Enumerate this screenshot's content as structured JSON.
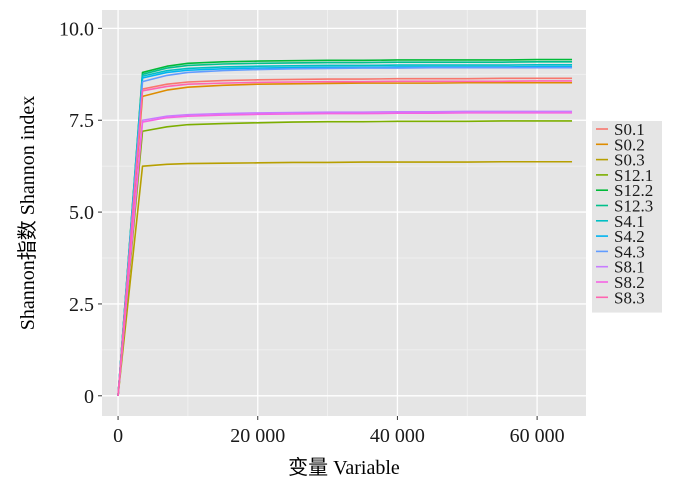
{
  "chart_data": {
    "type": "line",
    "xlabel": "变量 Variable",
    "ylabel": "Shannon指数 Shannon index",
    "xlim": [
      -2300,
      67000
    ],
    "ylim": [
      -0.55,
      10.5
    ],
    "x_ticks": [
      0,
      20000,
      40000,
      60000
    ],
    "x_tick_labels": [
      "0",
      "20 000",
      "40 000",
      "60 000"
    ],
    "y_ticks": [
      0,
      2.5,
      5.0,
      7.5,
      10.0
    ],
    "y_tick_labels": [
      "0",
      "2.5",
      "5.0",
      "7.5",
      "10.0"
    ],
    "grid": true,
    "panel_background": "#e5e5e5",
    "legend_position": "right",
    "x": [
      0,
      3500,
      7000,
      10000,
      15000,
      20000,
      25000,
      30000,
      35000,
      40000,
      45000,
      50000,
      55000,
      60000,
      65000
    ],
    "series": [
      {
        "name": "S0.1",
        "color": "#F8766D",
        "values": [
          0,
          8.35,
          8.48,
          8.54,
          8.58,
          8.6,
          8.61,
          8.62,
          8.62,
          8.63,
          8.63,
          8.63,
          8.64,
          8.64,
          8.64
        ]
      },
      {
        "name": "S0.2",
        "color": "#DE8C00",
        "values": [
          0,
          8.15,
          8.32,
          8.4,
          8.45,
          8.48,
          8.49,
          8.5,
          8.51,
          8.51,
          8.51,
          8.52,
          8.52,
          8.52,
          8.52
        ]
      },
      {
        "name": "S0.3",
        "color": "#B79F00",
        "values": [
          0,
          6.25,
          6.3,
          6.32,
          6.33,
          6.34,
          6.35,
          6.35,
          6.36,
          6.36,
          6.36,
          6.36,
          6.37,
          6.37,
          6.37
        ]
      },
      {
        "name": "S12.1",
        "color": "#7CAE00",
        "values": [
          0,
          7.2,
          7.32,
          7.38,
          7.41,
          7.43,
          7.45,
          7.46,
          7.46,
          7.47,
          7.47,
          7.47,
          7.48,
          7.48,
          7.48
        ]
      },
      {
        "name": "S12.2",
        "color": "#00BA38",
        "values": [
          0,
          8.8,
          8.97,
          9.05,
          9.09,
          9.11,
          9.12,
          9.13,
          9.13,
          9.14,
          9.14,
          9.14,
          9.14,
          9.15,
          9.15
        ]
      },
      {
        "name": "S12.3",
        "color": "#00C08B",
        "values": [
          0,
          8.75,
          8.92,
          8.99,
          9.03,
          9.05,
          9.06,
          9.07,
          9.07,
          9.08,
          9.08,
          9.08,
          9.08,
          9.09,
          9.09
        ]
      },
      {
        "name": "S4.1",
        "color": "#00BFC4",
        "values": [
          0,
          8.7,
          8.85,
          8.91,
          8.95,
          8.97,
          8.98,
          8.99,
          8.99,
          9.0,
          9.0,
          9.0,
          9.0,
          9.01,
          9.01
        ]
      },
      {
        "name": "S4.2",
        "color": "#00B4F0",
        "values": [
          0,
          8.65,
          8.8,
          8.86,
          8.9,
          8.92,
          8.93,
          8.94,
          8.94,
          8.95,
          8.95,
          8.95,
          8.95,
          8.96,
          8.96
        ]
      },
      {
        "name": "S4.3",
        "color": "#619CFF",
        "values": [
          0,
          8.55,
          8.72,
          8.8,
          8.85,
          8.88,
          8.9,
          8.91,
          8.92,
          8.92,
          8.93,
          8.93,
          8.93,
          8.93,
          8.93
        ]
      },
      {
        "name": "S8.1",
        "color": "#C77CFF",
        "values": [
          0,
          7.5,
          7.61,
          7.65,
          7.68,
          7.7,
          7.71,
          7.72,
          7.72,
          7.73,
          7.73,
          7.74,
          7.74,
          7.74,
          7.74
        ]
      },
      {
        "name": "S8.2",
        "color": "#F564E3",
        "values": [
          0,
          7.45,
          7.57,
          7.61,
          7.64,
          7.66,
          7.67,
          7.68,
          7.68,
          7.69,
          7.69,
          7.7,
          7.7,
          7.7,
          7.7
        ]
      },
      {
        "name": "S8.3",
        "color": "#FF64B0",
        "values": [
          0,
          8.3,
          8.42,
          8.48,
          8.51,
          8.53,
          8.54,
          8.55,
          8.55,
          8.56,
          8.56,
          8.56,
          8.56,
          8.57,
          8.57
        ]
      }
    ]
  }
}
